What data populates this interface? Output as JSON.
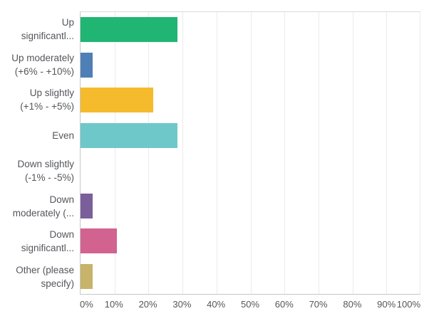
{
  "chart_data": {
    "type": "bar",
    "orientation": "horizontal",
    "title": "",
    "xlabel": "",
    "ylabel": "",
    "categories": [
      "Up\nsignificantl...",
      "Up moderately\n(+6% - +10%)",
      "Up slightly\n(+1% - +5%)",
      "Even",
      "Down slightly\n(-1% - -5%)",
      "Down\nmoderately (...",
      "Down\nsignificantl...",
      "Other (please\nspecify)"
    ],
    "values": [
      28.57,
      3.57,
      21.43,
      28.57,
      0,
      3.57,
      10.71,
      3.57
    ],
    "colors": [
      "#21b573",
      "#4e7fb6",
      "#f5bb2c",
      "#6ec8ca",
      null,
      "#7a5f9a",
      "#d2628f",
      "#c7b36a"
    ],
    "x_ticks": [
      "0%",
      "10%",
      "20%",
      "30%",
      "40%",
      "50%",
      "60%",
      "70%",
      "80%",
      "90%",
      "100%"
    ],
    "x_tick_values": [
      0,
      10,
      20,
      30,
      40,
      50,
      60,
      70,
      80,
      90,
      100
    ],
    "xlim": [
      0,
      100
    ],
    "grid": "vertical",
    "legend": "none"
  },
  "style": {
    "background": "#ffffff",
    "text_color": "#54565b",
    "grid_color": "#eaebec",
    "axis_color": "#c6c7c9"
  }
}
